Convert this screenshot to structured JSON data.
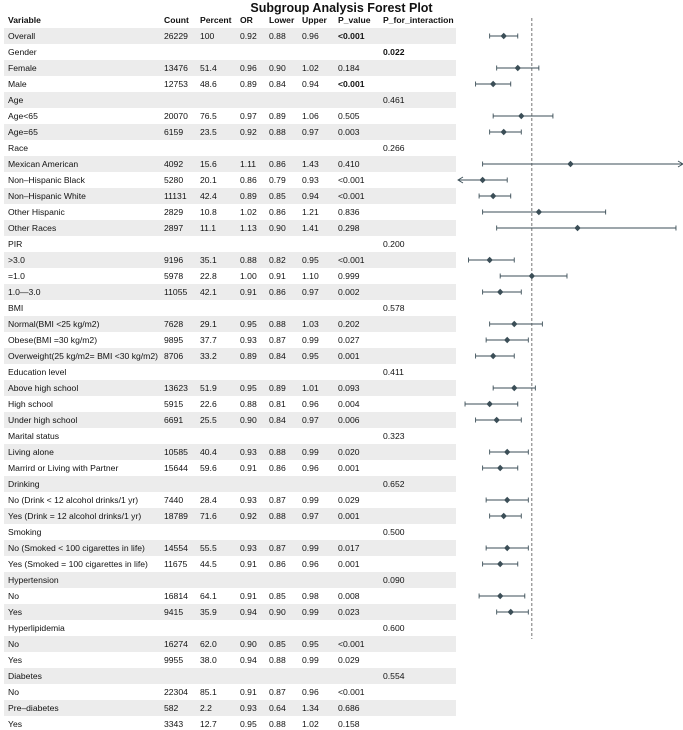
{
  "title": "Subgroup Analysis Forest Plot",
  "headers": {
    "variable": "Variable",
    "count": "Count",
    "percent": "Percent",
    "or": "OR",
    "lower": "Lower",
    "upper": "Upper",
    "p_value": "P_value",
    "p_interaction": "P_for_interaction"
  },
  "chart_data": {
    "type": "forest",
    "reference_line": 1,
    "xlim": [
      0.79,
      1.43
    ],
    "rows": [
      {
        "label": "Overall",
        "count": "26229",
        "percent": "100",
        "or": "0.92",
        "lower": "0.88",
        "upper": "0.96",
        "p": "<0.001",
        "p_bold": true,
        "pi": "",
        "or_v": 0.92,
        "lo_v": 0.88,
        "up_v": 0.96
      },
      {
        "label": "Gender",
        "count": "",
        "percent": "",
        "or": "",
        "lower": "",
        "upper": "",
        "p": "",
        "pi": "0.022",
        "pi_bold": true
      },
      {
        "label": "Female",
        "count": "13476",
        "percent": "51.4",
        "or": "0.96",
        "lower": "0.90",
        "upper": "1.02",
        "p": "0.184",
        "pi": "",
        "or_v": 0.96,
        "lo_v": 0.9,
        "up_v": 1.02
      },
      {
        "label": "Male",
        "count": "12753",
        "percent": "48.6",
        "or": "0.89",
        "lower": "0.84",
        "upper": "0.94",
        "p": "<0.001",
        "p_bold": true,
        "pi": "",
        "or_v": 0.89,
        "lo_v": 0.84,
        "up_v": 0.94
      },
      {
        "label": "Age",
        "count": "",
        "percent": "",
        "or": "",
        "lower": "",
        "upper": "",
        "p": "",
        "pi": "0.461"
      },
      {
        "label": "Age<65",
        "count": "20070",
        "percent": "76.5",
        "or": "0.97",
        "lower": "0.89",
        "upper": "1.06",
        "p": "0.505",
        "pi": "",
        "or_v": 0.97,
        "lo_v": 0.89,
        "up_v": 1.06
      },
      {
        "label": "Age=65",
        "count": "6159",
        "percent": "23.5",
        "or": "0.92",
        "lower": "0.88",
        "upper": "0.97",
        "p": "0.003",
        "pi": "",
        "or_v": 0.92,
        "lo_v": 0.88,
        "up_v": 0.97
      },
      {
        "label": "Race",
        "count": "",
        "percent": "",
        "or": "",
        "lower": "",
        "upper": "",
        "p": "",
        "pi": "0.266"
      },
      {
        "label": "Mexican American",
        "count": "4092",
        "percent": "15.6",
        "or": "1.11",
        "lower": "0.86",
        "upper": "1.43",
        "p": "0.410",
        "pi": "",
        "or_v": 1.11,
        "lo_v": 0.86,
        "up_v": 1.43
      },
      {
        "label": "Non–Hispanic Black",
        "count": "5280",
        "percent": "20.1",
        "or": "0.86",
        "lower": "0.79",
        "upper": "0.93",
        "p": "<0.001",
        "pi": "",
        "or_v": 0.86,
        "lo_v": 0.79,
        "up_v": 0.93
      },
      {
        "label": "Non–Hispanic White",
        "count": "11131",
        "percent": "42.4",
        "or": "0.89",
        "lower": "0.85",
        "upper": "0.94",
        "p": "<0.001",
        "pi": "",
        "or_v": 0.89,
        "lo_v": 0.85,
        "up_v": 0.94
      },
      {
        "label": "Other Hispanic",
        "count": "2829",
        "percent": "10.8",
        "or": "1.02",
        "lower": "0.86",
        "upper": "1.21",
        "p": "0.836",
        "pi": "",
        "or_v": 1.02,
        "lo_v": 0.86,
        "up_v": 1.21
      },
      {
        "label": "Other Races",
        "count": "2897",
        "percent": "11.1",
        "or": "1.13",
        "lower": "0.90",
        "upper": "1.41",
        "p": "0.298",
        "pi": "",
        "or_v": 1.13,
        "lo_v": 0.9,
        "up_v": 1.41
      },
      {
        "label": "PIR",
        "count": "",
        "percent": "",
        "or": "",
        "lower": "",
        "upper": "",
        "p": "",
        "pi": "0.200"
      },
      {
        "label": ">3.0",
        "count": "9196",
        "percent": "35.1",
        "or": "0.88",
        "lower": "0.82",
        "upper": "0.95",
        "p": "<0.001",
        "pi": "",
        "or_v": 0.88,
        "lo_v": 0.82,
        "up_v": 0.95
      },
      {
        "label": "=1.0",
        "count": "5978",
        "percent": "22.8",
        "or": "1.00",
        "lower": "0.91",
        "upper": "1.10",
        "p": "0.999",
        "pi": "",
        "or_v": 1.0,
        "lo_v": 0.91,
        "up_v": 1.1
      },
      {
        "label": "1.0—3.0",
        "count": "11055",
        "percent": "42.1",
        "or": "0.91",
        "lower": "0.86",
        "upper": "0.97",
        "p": "0.002",
        "pi": "",
        "or_v": 0.91,
        "lo_v": 0.86,
        "up_v": 0.97
      },
      {
        "label": "BMI",
        "count": "",
        "percent": "",
        "or": "",
        "lower": "",
        "upper": "",
        "p": "",
        "pi": "0.578"
      },
      {
        "label": "Normal(BMI <25 kg/m2)",
        "count": "7628",
        "percent": "29.1",
        "or": "0.95",
        "lower": "0.88",
        "upper": "1.03",
        "p": "0.202",
        "pi": "",
        "or_v": 0.95,
        "lo_v": 0.88,
        "up_v": 1.03
      },
      {
        "label": "Obese(BMI =30 kg/m2)",
        "count": "9895",
        "percent": "37.7",
        "or": "0.93",
        "lower": "0.87",
        "upper": "0.99",
        "p": "0.027",
        "pi": "",
        "or_v": 0.93,
        "lo_v": 0.87,
        "up_v": 0.99
      },
      {
        "label": "Overweight(25 kg/m2= BMI <30 kg/m2)",
        "count": "8706",
        "percent": "33.2",
        "or": "0.89",
        "lower": "0.84",
        "upper": "0.95",
        "p": "0.001",
        "pi": "",
        "or_v": 0.89,
        "lo_v": 0.84,
        "up_v": 0.95
      },
      {
        "label": "Education level",
        "count": "",
        "percent": "",
        "or": "",
        "lower": "",
        "upper": "",
        "p": "",
        "pi": "0.411"
      },
      {
        "label": "Above high school",
        "count": "13623",
        "percent": "51.9",
        "or": "0.95",
        "lower": "0.89",
        "upper": "1.01",
        "p": "0.093",
        "pi": "",
        "or_v": 0.95,
        "lo_v": 0.89,
        "up_v": 1.01
      },
      {
        "label": "High school",
        "count": "5915",
        "percent": "22.6",
        "or": "0.88",
        "lower": "0.81",
        "upper": "0.96",
        "p": "0.004",
        "pi": "",
        "or_v": 0.88,
        "lo_v": 0.81,
        "up_v": 0.96
      },
      {
        "label": "Under high school",
        "count": "6691",
        "percent": "25.5",
        "or": "0.90",
        "lower": "0.84",
        "upper": "0.97",
        "p": "0.006",
        "pi": "",
        "or_v": 0.9,
        "lo_v": 0.84,
        "up_v": 0.97
      },
      {
        "label": "Marital status",
        "count": "",
        "percent": "",
        "or": "",
        "lower": "",
        "upper": "",
        "p": "",
        "pi": "0.323"
      },
      {
        "label": "Living alone",
        "count": "10585",
        "percent": "40.4",
        "or": "0.93",
        "lower": "0.88",
        "upper": "0.99",
        "p": "0.020",
        "pi": "",
        "or_v": 0.93,
        "lo_v": 0.88,
        "up_v": 0.99
      },
      {
        "label": "Marrird or Living  with  Partner",
        "count": "15644",
        "percent": "59.6",
        "or": "0.91",
        "lower": "0.86",
        "upper": "0.96",
        "p": "0.001",
        "pi": "",
        "or_v": 0.91,
        "lo_v": 0.86,
        "up_v": 0.96
      },
      {
        "label": "Drinking",
        "count": "",
        "percent": "",
        "or": "",
        "lower": "",
        "upper": "",
        "p": "",
        "pi": "0.652"
      },
      {
        "label": "No (Drink < 12 alcohol drinks/1 yr)",
        "count": "7440",
        "percent": "28.4",
        "or": "0.93",
        "lower": "0.87",
        "upper": "0.99",
        "p": "0.029",
        "pi": "",
        "or_v": 0.93,
        "lo_v": 0.87,
        "up_v": 0.99
      },
      {
        "label": "Yes (Drink = 12 alcohol drinks/1 yr)",
        "count": "18789",
        "percent": "71.6",
        "or": "0.92",
        "lower": "0.88",
        "upper": "0.97",
        "p": "0.001",
        "pi": "",
        "or_v": 0.92,
        "lo_v": 0.88,
        "up_v": 0.97
      },
      {
        "label": "Smoking",
        "count": "",
        "percent": "",
        "or": "",
        "lower": "",
        "upper": "",
        "p": "",
        "pi": "0.500"
      },
      {
        "label": "No (Smoked < 100 cigarettes in life)",
        "count": "14554",
        "percent": "55.5",
        "or": "0.93",
        "lower": "0.87",
        "upper": "0.99",
        "p": "0.017",
        "pi": "",
        "or_v": 0.93,
        "lo_v": 0.87,
        "up_v": 0.99
      },
      {
        "label": "Yes (Smoked = 100 cigarettes in life)",
        "count": "11675",
        "percent": "44.5",
        "or": "0.91",
        "lower": "0.86",
        "upper": "0.96",
        "p": "0.001",
        "pi": "",
        "or_v": 0.91,
        "lo_v": 0.86,
        "up_v": 0.96
      },
      {
        "label": "Hypertension",
        "count": "",
        "percent": "",
        "or": "",
        "lower": "",
        "upper": "",
        "p": "",
        "pi": "0.090"
      },
      {
        "label": "No",
        "count": "16814",
        "percent": "64.1",
        "or": "0.91",
        "lower": "0.85",
        "upper": "0.98",
        "p": "0.008",
        "pi": "",
        "or_v": 0.91,
        "lo_v": 0.85,
        "up_v": 0.98
      },
      {
        "label": "Yes",
        "count": "9415",
        "percent": "35.9",
        "or": "0.94",
        "lower": "0.90",
        "upper": "0.99",
        "p": "0.023",
        "pi": "",
        "or_v": 0.94,
        "lo_v": 0.9,
        "up_v": 0.99
      },
      {
        "label": "Hyperlipidemia",
        "count": "",
        "percent": "",
        "or": "",
        "lower": "",
        "upper": "",
        "p": "",
        "pi": "0.600"
      },
      {
        "label": "No",
        "count": "16274",
        "percent": "62.0",
        "or": "0.90",
        "lower": "0.85",
        "upper": "0.95",
        "p": "<0.001",
        "pi": "",
        "or_v": 0.9,
        "lo_v": 0.85,
        "up_v": 0.95
      },
      {
        "label": "Yes",
        "count": "9955",
        "percent": "38.0",
        "or": "0.94",
        "lower": "0.88",
        "upper": "0.99",
        "p": "0.029",
        "pi": "",
        "or_v": 0.94,
        "lo_v": 0.88,
        "up_v": 0.99
      },
      {
        "label": "Diabetes",
        "count": "",
        "percent": "",
        "or": "",
        "lower": "",
        "upper": "",
        "p": "",
        "pi": "0.554"
      },
      {
        "label": "No",
        "count": "22304",
        "percent": "85.1",
        "or": "0.91",
        "lower": "0.87",
        "upper": "0.96",
        "p": "<0.001",
        "pi": "",
        "or_v": 0.91,
        "lo_v": 0.87,
        "up_v": 0.96
      },
      {
        "label": "Pre–diabetes",
        "count": "582",
        "percent": "2.2",
        "or": "0.93",
        "lower": "0.64",
        "upper": "1.34",
        "p": "0.686",
        "pi": "",
        "or_v": 0.93,
        "lo_v": 0.64,
        "up_v": 1.34
      },
      {
        "label": "Yes",
        "count": "3343",
        "percent": "12.7",
        "or": "0.95",
        "lower": "0.88",
        "upper": "1.02",
        "p": "0.158",
        "pi": "",
        "or_v": 0.95,
        "lo_v": 0.88,
        "up_v": 1.02
      }
    ]
  }
}
